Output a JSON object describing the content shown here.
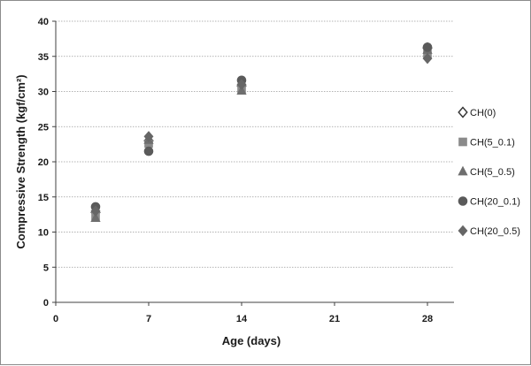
{
  "chart_data": {
    "type": "scatter",
    "title": "",
    "xlabel": "Age (days)",
    "ylabel": "Compressive  Strength  (kgf/cm²)",
    "xlim": [
      0,
      30
    ],
    "ylim": [
      0,
      40
    ],
    "x_ticks": [
      0,
      7,
      14,
      21,
      28
    ],
    "y_ticks": [
      0,
      5,
      10,
      15,
      20,
      25,
      30,
      35,
      40
    ],
    "grid": "horizontal",
    "legend_position": "right",
    "series": [
      {
        "name": "CH(0)",
        "marker": "diamond-open",
        "color": "#ffffff",
        "stroke": "#333333",
        "x": [
          3,
          7,
          14,
          28
        ],
        "y": [
          12.8,
          23.0,
          30.8,
          36.2
        ]
      },
      {
        "name": "CH(5_0.1)",
        "marker": "square",
        "color": "#8a8a8a",
        "stroke": "#8a8a8a",
        "x": [
          3,
          7,
          14,
          28
        ],
        "y": [
          12.3,
          22.6,
          30.4,
          35.4
        ]
      },
      {
        "name": "CH(5_0.5)",
        "marker": "triangle",
        "color": "#6e6e6e",
        "stroke": "#6e6e6e",
        "x": [
          3,
          7,
          14,
          28
        ],
        "y": [
          12.0,
          23.1,
          30.1,
          35.9
        ]
      },
      {
        "name": "CH(20_0.1)",
        "marker": "circle",
        "color": "#5a5a5a",
        "stroke": "#5a5a5a",
        "x": [
          3,
          7,
          14,
          28
        ],
        "y": [
          13.6,
          21.5,
          31.6,
          36.3
        ]
      },
      {
        "name": "CH(20_0.5)",
        "marker": "diamond",
        "color": "#666666",
        "stroke": "#666666",
        "x": [
          3,
          7,
          14,
          28
        ],
        "y": [
          13.0,
          23.6,
          31.0,
          34.7
        ]
      }
    ]
  }
}
